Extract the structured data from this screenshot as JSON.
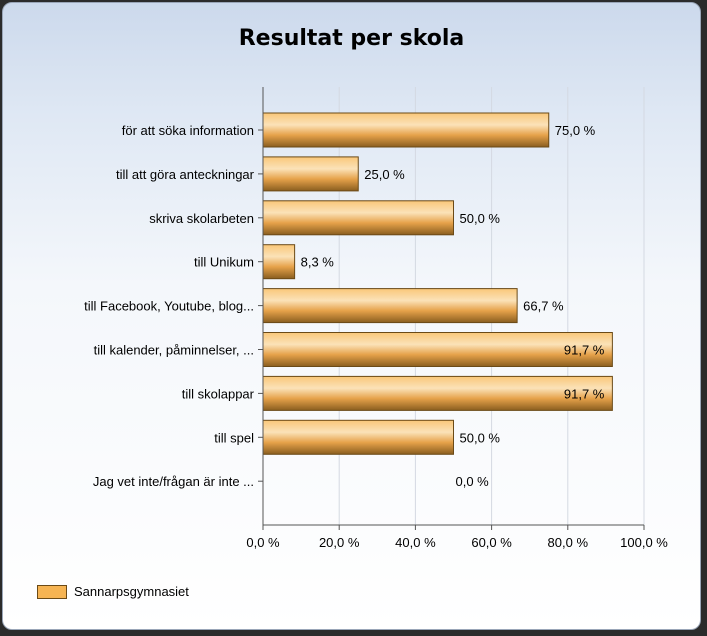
{
  "chart_data": {
    "type": "bar",
    "orientation": "horizontal",
    "title": "Resultat per skola",
    "categories": [
      "för att söka information",
      "till att göra anteckningar",
      "skriva skolarbeten",
      "till Unikum",
      "till Facebook, Youtube, blog...",
      "till kalender, påminnelser, ...",
      "till skolappar",
      "till spel",
      "Jag vet inte/frågan är inte ..."
    ],
    "series": [
      {
        "name": "Sannarpsgymnasiet",
        "values": [
          75.0,
          25.0,
          50.0,
          8.3,
          66.7,
          91.7,
          91.7,
          50.0,
          0.0
        ],
        "value_labels": [
          "75,0 %",
          "25,0 %",
          "50,0 %",
          "8,3 %",
          "66,7 %",
          "91,7 %",
          "91,7 %",
          "50,0 %",
          "0,0 %"
        ],
        "color": "#f6b453"
      }
    ],
    "xlim": [
      0,
      100
    ],
    "x_ticks": [
      0,
      20,
      40,
      60,
      80,
      100
    ],
    "x_tick_labels": [
      "0,0 %",
      "20,0 %",
      "40,0 %",
      "60,0 %",
      "80,0 %",
      "100,0 %"
    ],
    "grid": true,
    "legend_position": "bottom-left"
  }
}
